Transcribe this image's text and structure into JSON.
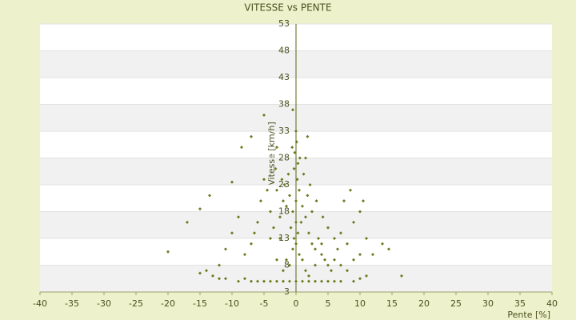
{
  "chart_data": {
    "type": "scatter",
    "title": "VITESSE vs PENTE",
    "xlabel": "Pente [%]",
    "ylabel": "Vitesse [km/h]",
    "xlim": [
      -40,
      40
    ],
    "xticks": [
      -40,
      -35,
      -30,
      -25,
      -20,
      -15,
      -10,
      -5,
      0,
      5,
      10,
      15,
      20,
      25,
      30,
      35,
      40
    ],
    "ylim": [
      3,
      53
    ],
    "yticks": [
      3,
      8,
      13,
      18,
      23,
      28,
      33,
      38,
      43,
      48,
      53
    ],
    "series": [
      {
        "color": "#6b7a1a",
        "x": [
          0,
          0.5,
          -0.5,
          1,
          -1,
          0.2,
          0.8,
          -0.8,
          1.5,
          -1.5,
          2,
          -2,
          2.5,
          -2.5,
          3,
          -3,
          3.5,
          -3.5,
          4,
          -4,
          4.5,
          5,
          5.5,
          6,
          7,
          8,
          9,
          10,
          11,
          6.5,
          -0.3,
          0.3,
          -0.2,
          0.1,
          -1.2,
          1.2,
          2.2,
          -2.2,
          3.2,
          -3.2,
          4.2,
          -4.5,
          -5,
          -5.5,
          -6,
          -6.5,
          -7,
          -8,
          -9,
          -10,
          -11,
          -12,
          5,
          6,
          7,
          8,
          9,
          10,
          0,
          0.5,
          -0.5,
          1,
          -1,
          1.5,
          -1.5,
          2,
          -2,
          0,
          1,
          -1,
          2,
          -2,
          3,
          -3,
          4,
          5,
          -4,
          -5,
          6,
          -6,
          7,
          9,
          -7,
          10,
          -8,
          -9,
          3,
          -3,
          4,
          -4,
          2.5,
          -2.5,
          0,
          0.3,
          -0.3,
          1.8,
          -1.8,
          0.6,
          -0.6,
          1.5,
          -20,
          -17,
          -15,
          -13.5,
          -14,
          -13,
          -15,
          -12,
          -11,
          -5,
          -0.5,
          0,
          -7,
          -8.5,
          -10,
          16.5,
          13.5,
          14.5,
          10.5,
          8.5,
          7.5,
          11,
          12,
          1.8,
          -3
        ],
        "values": [
          20,
          22,
          18,
          19,
          21,
          24,
          16,
          15,
          17,
          19,
          14,
          20,
          12,
          17,
          11,
          22,
          13,
          15,
          10,
          18,
          9,
          8,
          7,
          9,
          8,
          7,
          9,
          10,
          6,
          11,
          26,
          27,
          29,
          31,
          25,
          25,
          23,
          24,
          20,
          26,
          17,
          22,
          24,
          20,
          16,
          14,
          12,
          10,
          17,
          14,
          11,
          8,
          15,
          13,
          14,
          12,
          16,
          18,
          12,
          10,
          11,
          9,
          8,
          7,
          9,
          6,
          7,
          5,
          5,
          5,
          5,
          5,
          5,
          5,
          5,
          5,
          5,
          5,
          5,
          5,
          5,
          5,
          5,
          5.5,
          5.5,
          5,
          8,
          9,
          12,
          13,
          18,
          13,
          16,
          14,
          13,
          21,
          23,
          28,
          30,
          28,
          10.5,
          16,
          18.5,
          21,
          7,
          6,
          6.5,
          5.5,
          5.5,
          36,
          37,
          33,
          32,
          30,
          23.5,
          6,
          12,
          11,
          20,
          22,
          20,
          13,
          10,
          32,
          30
        ]
      }
    ]
  }
}
